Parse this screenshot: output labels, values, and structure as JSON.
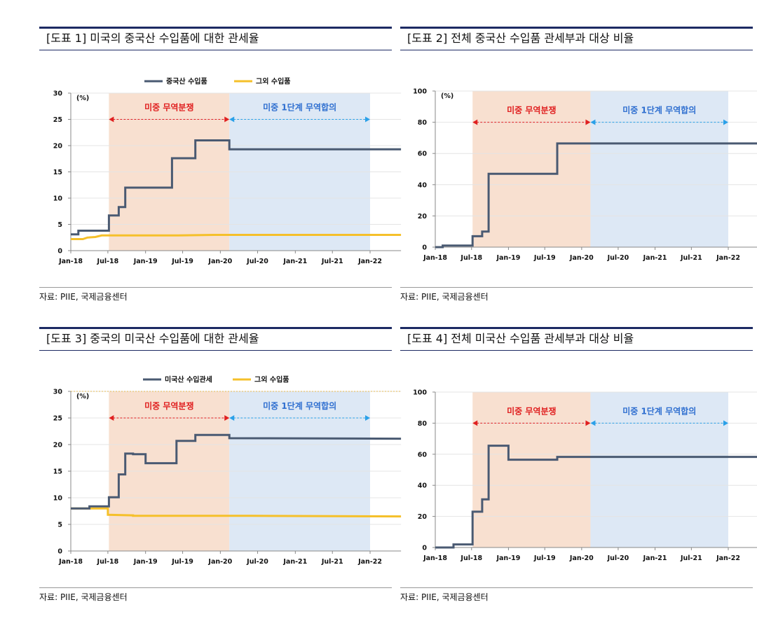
{
  "colors": {
    "china_line": "#4a5a72",
    "other_line": "#f5c02a",
    "war_shade": "#f8e0d0",
    "deal_shade": "#dde8f5",
    "war_text": "#e02020",
    "deal_text": "#2f6fd0",
    "war_arrow": "#e02020",
    "deal_arrow": "#2aa0e8",
    "title_rule": "#1c2a63"
  },
  "xticks": [
    "Jan-18",
    "Jul-18",
    "Jan-19",
    "Jul-19",
    "Jan-20",
    "Jul-20",
    "Jan-21",
    "Jul-21",
    "Jan-22"
  ],
  "chart_data": [
    {
      "type": "line",
      "title": "[도표 1] 미국의 중국산 수입품에 대한 관세율",
      "source": "자료: PIIE, 국제금융센터",
      "unit": "(%)",
      "ylim": [
        0,
        30
      ],
      "yticks": [
        "0",
        "5",
        "10",
        "15",
        "20",
        "25",
        "30"
      ],
      "period_labels": {
        "war": "미중 무역분쟁",
        "deal": "미중 1단계 무역합의"
      },
      "legend": [
        "중국산 수입품",
        "그외 수입품"
      ],
      "series": [
        {
          "name": "중국산 수입품",
          "points": [
            [
              "2018-01-01",
              3.1
            ],
            [
              "2018-02-07",
              3.1
            ],
            [
              "2018-02-07",
              3.8
            ],
            [
              "2018-07-06",
              3.8
            ],
            [
              "2018-07-06",
              6.7
            ],
            [
              "2018-08-23",
              6.7
            ],
            [
              "2018-08-23",
              8.3
            ],
            [
              "2018-09-24",
              8.3
            ],
            [
              "2018-09-24",
              12.0
            ],
            [
              "2019-05-10",
              12.0
            ],
            [
              "2019-05-10",
              17.6
            ],
            [
              "2019-09-01",
              17.6
            ],
            [
              "2019-09-01",
              21.0
            ],
            [
              "2020-02-14",
              21.0
            ],
            [
              "2020-02-14",
              19.3
            ],
            [
              "2022-06-01",
              19.3
            ]
          ]
        },
        {
          "name": "그외 수입품",
          "points": [
            [
              "2018-01-01",
              2.2
            ],
            [
              "2018-03-01",
              2.2
            ],
            [
              "2018-03-23",
              2.5
            ],
            [
              "2018-05-01",
              2.6
            ],
            [
              "2018-06-01",
              2.9
            ],
            [
              "2018-09-01",
              2.9
            ],
            [
              "2019-06-01",
              2.9
            ],
            [
              "2019-12-01",
              3.0
            ],
            [
              "2020-06-01",
              3.0
            ],
            [
              "2022-06-01",
              3.0
            ]
          ]
        }
      ]
    },
    {
      "type": "line",
      "title": "[도표 2] 전체 중국산 수입품 관세부과 대상 비율",
      "source": "자료: PIIE, 국제금융센터",
      "unit": "(%)",
      "ylim": [
        0,
        100
      ],
      "yticks": [
        "0",
        "20",
        "40",
        "60",
        "80",
        "100"
      ],
      "period_labels": {
        "war": "미중 무역분쟁",
        "deal": "미중 1단계 무역합의"
      },
      "series": [
        {
          "name": "",
          "points": [
            [
              "2018-01-01",
              0
            ],
            [
              "2018-02-07",
              0
            ],
            [
              "2018-02-07",
              1
            ],
            [
              "2018-07-06",
              1
            ],
            [
              "2018-07-06",
              7
            ],
            [
              "2018-08-23",
              7
            ],
            [
              "2018-08-23",
              10
            ],
            [
              "2018-09-24",
              10
            ],
            [
              "2018-09-24",
              47
            ],
            [
              "2019-09-01",
              47
            ],
            [
              "2019-09-01",
              66.4
            ],
            [
              "2022-06-01",
              66.4
            ]
          ]
        }
      ]
    },
    {
      "type": "line",
      "title": "[도표 3] 중국의 미국산 수입품에 대한 관세율",
      "source": "자료: PIIE, 국제금융센터",
      "unit": "(%)",
      "ylim": [
        0,
        30
      ],
      "yticks": [
        "0",
        "5",
        "10",
        "15",
        "20",
        "25",
        "30"
      ],
      "period_labels": {
        "war": "미중 무역분쟁",
        "deal": "미중 1단계 무역합의"
      },
      "legend": [
        "미국산 수입관세",
        "그외 수입품"
      ],
      "series": [
        {
          "name": "미국산 수입관세",
          "points": [
            [
              "2018-01-01",
              8.0
            ],
            [
              "2018-04-02",
              8.0
            ],
            [
              "2018-04-02",
              8.4
            ],
            [
              "2018-07-06",
              8.4
            ],
            [
              "2018-07-06",
              10.1
            ],
            [
              "2018-08-23",
              10.1
            ],
            [
              "2018-08-23",
              14.4
            ],
            [
              "2018-09-24",
              14.4
            ],
            [
              "2018-09-24",
              18.3
            ],
            [
              "2018-11-01",
              18.3
            ],
            [
              "2018-11-01",
              18.2
            ],
            [
              "2019-01-01",
              18.2
            ],
            [
              "2019-01-01",
              16.5
            ],
            [
              "2019-06-01",
              16.5
            ],
            [
              "2019-06-01",
              20.7
            ],
            [
              "2019-09-01",
              20.7
            ],
            [
              "2019-09-01",
              21.8
            ],
            [
              "2020-02-14",
              21.8
            ],
            [
              "2020-02-14",
              21.2
            ],
            [
              "2022-06-01",
              21.1
            ]
          ]
        },
        {
          "name": "그외 수입품",
          "points": [
            [
              "2018-01-01",
              8.0
            ],
            [
              "2018-07-01",
              8.0
            ],
            [
              "2018-07-01",
              6.8
            ],
            [
              "2018-11-01",
              6.7
            ],
            [
              "2018-11-01",
              6.6
            ],
            [
              "2019-06-01",
              6.6
            ],
            [
              "2020-06-01",
              6.6
            ],
            [
              "2022-06-01",
              6.5
            ]
          ]
        }
      ]
    },
    {
      "type": "line",
      "title": "[도표 4] 전체 미국산 수입품 관세부과 대상 비율",
      "source": "자료: PIIE, 국제금융센터",
      "unit": "",
      "ylim": [
        0,
        100
      ],
      "yticks": [
        "0",
        "20",
        "40",
        "60",
        "80",
        "100"
      ],
      "period_labels": {
        "war": "미중 무역분쟁",
        "deal": "미중 1단계 무역합의"
      },
      "series": [
        {
          "name": "",
          "points": [
            [
              "2018-01-01",
              0
            ],
            [
              "2018-04-02",
              0
            ],
            [
              "2018-04-02",
              2
            ],
            [
              "2018-07-06",
              2
            ],
            [
              "2018-07-06",
              23
            ],
            [
              "2018-08-23",
              23
            ],
            [
              "2018-08-23",
              31
            ],
            [
              "2018-09-24",
              31
            ],
            [
              "2018-09-24",
              65.5
            ],
            [
              "2019-01-01",
              65.5
            ],
            [
              "2019-01-01",
              56.5
            ],
            [
              "2019-09-01",
              56.5
            ],
            [
              "2019-09-01",
              58.3
            ],
            [
              "2022-06-01",
              58.3
            ]
          ]
        }
      ]
    }
  ]
}
